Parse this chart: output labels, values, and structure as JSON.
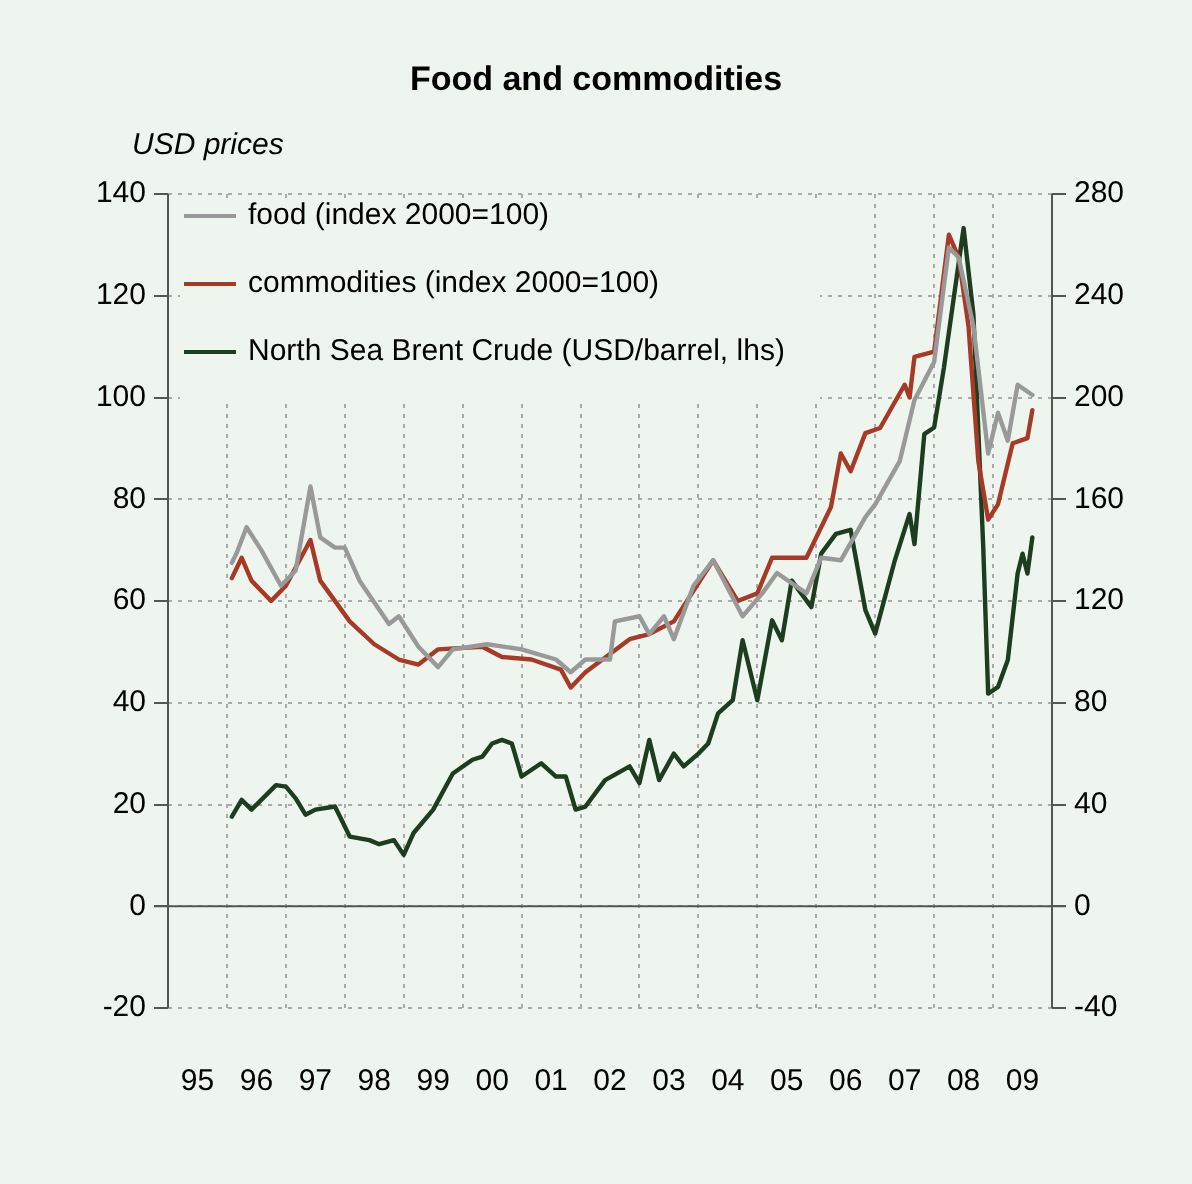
{
  "chart_data": {
    "type": "line",
    "title": "Food and commodities",
    "ylabel": "USD  prices",
    "xlim": [
      "1995-01",
      "2010-01"
    ],
    "xticks": [
      {
        "value": "1995-07",
        "label": "95"
      },
      {
        "value": "1996-01",
        "label": null
      },
      {
        "value": "1996-07",
        "label": "96"
      },
      {
        "value": "1997-01",
        "label": null
      },
      {
        "value": "1997-07",
        "label": "97"
      },
      {
        "value": "1998-01",
        "label": null
      },
      {
        "value": "1998-07",
        "label": "98"
      },
      {
        "value": "1999-01",
        "label": null
      },
      {
        "value": "1999-07",
        "label": "99"
      },
      {
        "value": "2000-01",
        "label": null
      },
      {
        "value": "2000-07",
        "label": "00"
      },
      {
        "value": "2001-01",
        "label": null
      },
      {
        "value": "2001-07",
        "label": "01"
      },
      {
        "value": "2002-01",
        "label": null
      },
      {
        "value": "2002-07",
        "label": "02"
      },
      {
        "value": "2003-01",
        "label": null
      },
      {
        "value": "2003-07",
        "label": "03"
      },
      {
        "value": "2004-01",
        "label": null
      },
      {
        "value": "2004-07",
        "label": "04"
      },
      {
        "value": "2005-01",
        "label": null
      },
      {
        "value": "2005-07",
        "label": "05"
      },
      {
        "value": "2006-01",
        "label": null
      },
      {
        "value": "2006-07",
        "label": "06"
      },
      {
        "value": "2007-01",
        "label": null
      },
      {
        "value": "2007-07",
        "label": "07"
      },
      {
        "value": "2008-01",
        "label": null
      },
      {
        "value": "2008-07",
        "label": "08"
      },
      {
        "value": "2009-01",
        "label": null
      },
      {
        "value": "2009-07",
        "label": "09"
      }
    ],
    "ylim": [
      -20,
      140
    ],
    "yticks": [
      -20,
      0,
      20,
      40,
      60,
      80,
      100,
      120,
      140
    ],
    "y2lim": [
      -40,
      280
    ],
    "y2ticks": [
      -40,
      0,
      40,
      80,
      120,
      160,
      200,
      240,
      280
    ],
    "grid": true,
    "legend": "top left",
    "marker": "none",
    "line_style": "solid",
    "series": [
      {
        "name": "food (index 2000=100)",
        "color": "#999999",
        "axis": "y2",
        "x": [
          "1996-02",
          "1996-03",
          "1996-05",
          "1996-08",
          "1996-12",
          "1997-03",
          "1997-06",
          "1997-08",
          "1997-11",
          "1998-01",
          "1998-04",
          "1998-10",
          "1998-12",
          "1999-04",
          "1999-08",
          "1999-11",
          "2000-06",
          "2001-01",
          "2001-08",
          "2001-11",
          "2002-02",
          "2002-07",
          "2002-08",
          "2003-01",
          "2003-03",
          "2003-06",
          "2003-08",
          "2003-12",
          "2004-04",
          "2004-10",
          "2005-02",
          "2005-05",
          "2005-11",
          "2006-02",
          "2006-06",
          "2006-11",
          "2007-01",
          "2007-06",
          "2007-09",
          "2008-01",
          "2008-04",
          "2008-06",
          "2008-09",
          "2008-12",
          "2009-02",
          "2009-04",
          "2009-06",
          "2009-09"
        ],
        "values": [
          135,
          139,
          149,
          140,
          126,
          132,
          165,
          145,
          141,
          141,
          128,
          111,
          114,
          102,
          94,
          101,
          103,
          101,
          97,
          92,
          97,
          97,
          112,
          114,
          107,
          114,
          105,
          126,
          136,
          114,
          123,
          131,
          123,
          137,
          136,
          153,
          158,
          175,
          199,
          214,
          259,
          255,
          228,
          178,
          194,
          183,
          205,
          201
        ]
      },
      {
        "name": "commodities (index 2000=100)",
        "color": "#a63a26",
        "axis": "y2",
        "x": [
          "1996-02",
          "1996-04",
          "1996-06",
          "1996-10",
          "1997-01",
          "1997-06",
          "1997-08",
          "1998-02",
          "1998-07",
          "1998-12",
          "1999-04",
          "1999-08",
          "2000-05",
          "2000-09",
          "2001-03",
          "2001-09",
          "2001-11",
          "2002-02",
          "2002-11",
          "2003-03",
          "2003-08",
          "2004-04",
          "2004-09",
          "2005-01",
          "2005-04",
          "2005-11",
          "2006-04",
          "2006-06",
          "2006-08",
          "2006-11",
          "2007-02",
          "2007-07",
          "2007-08",
          "2007-09",
          "2008-01",
          "2008-04",
          "2008-06",
          "2008-08",
          "2008-10",
          "2008-12",
          "2009-02",
          "2009-05",
          "2009-08",
          "2009-09"
        ],
        "values": [
          129,
          137,
          128,
          120,
          126,
          144,
          128,
          112,
          103,
          97,
          95,
          101,
          102,
          98,
          97,
          93,
          86,
          92,
          105,
          107,
          112,
          136,
          120,
          123,
          137,
          137,
          157,
          178,
          171,
          186,
          188,
          205,
          200,
          216,
          218,
          264,
          255,
          228,
          175,
          152,
          158,
          182,
          184,
          195
        ]
      },
      {
        "name": "North Sea Brent Crude (USD/barrel, lhs)",
        "color": "#1d3d20",
        "axis": "y",
        "x": [
          "1996-02",
          "1996-04",
          "1996-06",
          "1996-08",
          "1996-11",
          "1997-01",
          "1997-03",
          "1997-05",
          "1997-07",
          "1997-11",
          "1998-02",
          "1998-06",
          "1998-08",
          "1998-11",
          "1999-01",
          "1999-03",
          "1999-07",
          "1999-11",
          "2000-03",
          "2000-05",
          "2000-07",
          "2000-09",
          "2000-11",
          "2001-01",
          "2001-05",
          "2001-08",
          "2001-10",
          "2001-12",
          "2002-02",
          "2002-06",
          "2002-11",
          "2003-01",
          "2003-03",
          "2003-05",
          "2003-08",
          "2003-10",
          "2004-01",
          "2004-03",
          "2004-05",
          "2004-08",
          "2004-10",
          "2005-01",
          "2005-04",
          "2005-06",
          "2005-08",
          "2005-12",
          "2006-02",
          "2006-05",
          "2006-08",
          "2006-11",
          "2007-01",
          "2007-05",
          "2007-08",
          "2007-09",
          "2007-11",
          "2008-01",
          "2008-03",
          "2008-07",
          "2008-09",
          "2008-11",
          "2008-12",
          "2009-02",
          "2009-04",
          "2009-06",
          "2009-07",
          "2009-08",
          "2009-09"
        ],
        "values": [
          17.6,
          20.9,
          19,
          20.9,
          23.8,
          23.5,
          21.2,
          18,
          19,
          19.6,
          13.7,
          13,
          12.2,
          13,
          10.1,
          14.4,
          19,
          26.1,
          28.8,
          29.4,
          32,
          32.7,
          32,
          25.5,
          28.1,
          25.5,
          25.5,
          19,
          19.6,
          24.8,
          27.5,
          24.2,
          32.7,
          24.8,
          30,
          27.5,
          30,
          32,
          37.9,
          40.5,
          52.3,
          40.5,
          56.2,
          52.3,
          64,
          58.8,
          69.3,
          73.2,
          74,
          58.2,
          53.6,
          68,
          77.1,
          71.2,
          92.8,
          94.1,
          105.9,
          133.3,
          116.3,
          70.6,
          41.8,
          43.1,
          48.4,
          65.4,
          69.3,
          65.4,
          72.5
        ]
      }
    ]
  }
}
